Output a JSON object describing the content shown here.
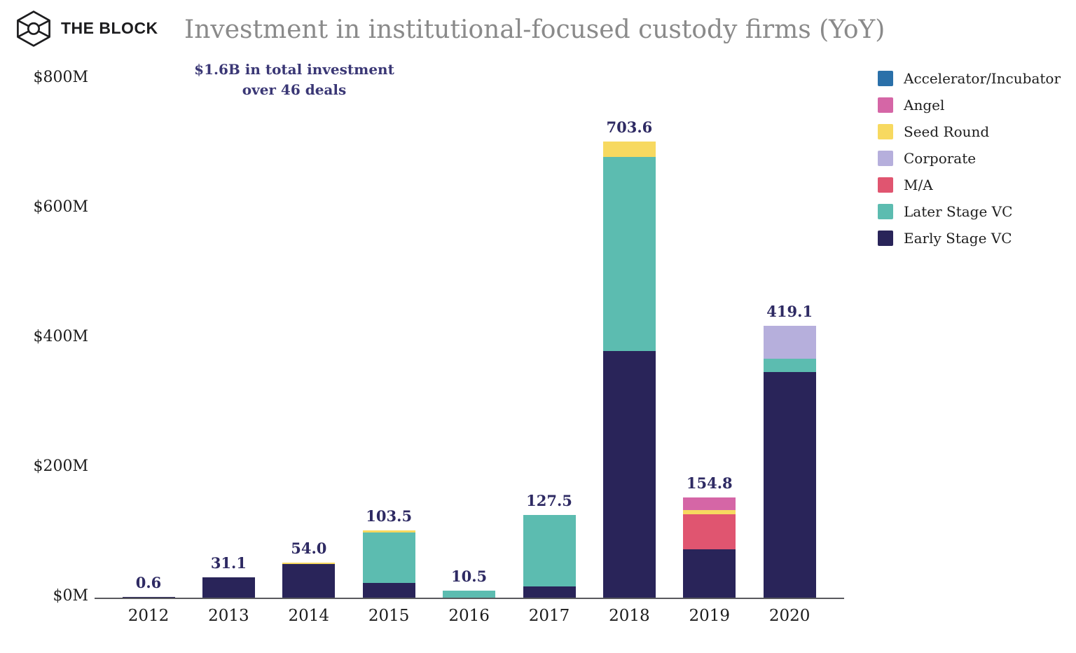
{
  "brand": {
    "name": "THE BLOCK",
    "logo": "block-cube-icon",
    "logo_color": "#1d1d1f"
  },
  "title": "Investment in institutional-focused custody firms (YoY)",
  "subtitle": {
    "line1": "$1.6B in total investment",
    "line2": "over 46 deals"
  },
  "colors": {
    "title_text": "#8a8a8a",
    "subtitle_text": "#3a3775",
    "data_label_text": "#2e2a63",
    "axis_text": "#1b1b1b",
    "axis_line": "#5a5a5e",
    "background": "#ffffff"
  },
  "chart_data": {
    "type": "bar",
    "stacked": true,
    "title": "Investment in institutional-focused custody firms (YoY)",
    "annotation": "$1.6B in total investment over 46 deals",
    "categories": [
      "2012",
      "2013",
      "2014",
      "2015",
      "2016",
      "2017",
      "2018",
      "2019",
      "2020"
    ],
    "series": [
      {
        "name": "Accelerator/Incubator",
        "color": "#2a70a9",
        "values": [
          0,
          0,
          0,
          0,
          0,
          0,
          0,
          0,
          0
        ]
      },
      {
        "name": "Angel",
        "color": "#d566a6",
        "values": [
          0,
          0,
          0,
          0,
          0,
          0,
          0,
          19.2,
          0
        ]
      },
      {
        "name": "Seed Round",
        "color": "#f7d960",
        "values": [
          0,
          0,
          2.0,
          3.3,
          0,
          0,
          23.6,
          6.6,
          0
        ]
      },
      {
        "name": "Corporate",
        "color": "#b6afdc",
        "values": [
          0,
          0,
          0,
          0,
          0,
          0,
          0,
          0,
          50.0
        ]
      },
      {
        "name": "M/A",
        "color": "#e05570",
        "values": [
          0,
          0,
          0,
          0,
          0,
          0,
          0,
          54.0,
          0
        ]
      },
      {
        "name": "Later Stage VC",
        "color": "#5cbcb0",
        "values": [
          0,
          0,
          0,
          77.3,
          10.5,
          110.5,
          300.0,
          0,
          21.0
        ]
      },
      {
        "name": "Early Stage VC",
        "color": "#292459",
        "values": [
          0.6,
          31.1,
          52.0,
          22.9,
          0,
          17.0,
          380.0,
          75.0,
          348.1
        ]
      }
    ],
    "totals": [
      0.6,
      31.1,
      54.0,
      103.5,
      10.5,
      127.5,
      703.6,
      154.8,
      419.1
    ],
    "total_labels": [
      "0.6",
      "31.1",
      "54.0",
      "103.5",
      "10.5",
      "127.5",
      "703.6",
      "154.8",
      "419.1"
    ],
    "y_ticks": [
      "$0M",
      "$200M",
      "$400M",
      "$600M",
      "$800M"
    ],
    "ylim": [
      0,
      800
    ],
    "ylabel": "",
    "xlabel": "",
    "grid": false,
    "legend_position": "right",
    "legend_order_top_to_bottom": [
      "Accelerator/Incubator",
      "Angel",
      "Seed Round",
      "Corporate",
      "M/A",
      "Later Stage VC",
      "Early Stage VC"
    ]
  }
}
